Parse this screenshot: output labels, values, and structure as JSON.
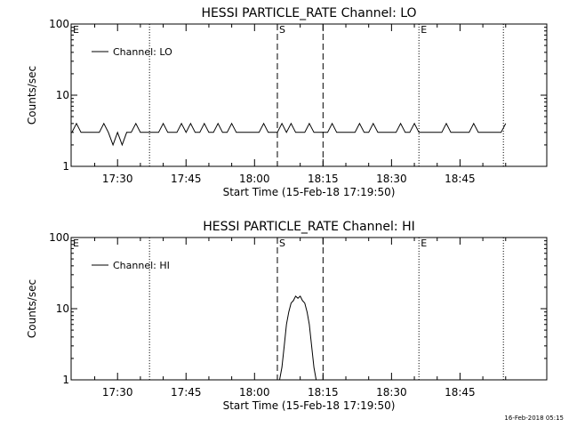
{
  "footer": "16-Feb-2018 05:15",
  "chart_data": [
    {
      "type": "line",
      "title": "HESSI PARTICLE_RATE Channel: LO",
      "xlabel": "Start Time (15-Feb-18 17:19:50)",
      "ylabel": "Counts/sec",
      "yscale": "log",
      "ylim": [
        1,
        100
      ],
      "yticks": [
        1,
        10,
        100
      ],
      "xlim": [
        "17:19:50",
        "19:04:00"
      ],
      "xticks": [
        "17:30",
        "17:45",
        "18:00",
        "18:15",
        "18:30",
        "18:45"
      ],
      "legend": {
        "placement": "top-left"
      },
      "markers": [
        {
          "label": "E",
          "time": "17:19:50",
          "style": "dotted"
        },
        {
          "label": "",
          "time": "17:37:00",
          "style": "dotted"
        },
        {
          "label": "S",
          "time": "18:05:00",
          "style": "dashed"
        },
        {
          "label": "",
          "time": "18:15:00",
          "style": "dashed"
        },
        {
          "label": "E",
          "time": "18:36:00",
          "style": "dotted"
        },
        {
          "label": "",
          "time": "18:54:30",
          "style": "dotted"
        }
      ],
      "series": [
        {
          "name": "Channel: LO",
          "x": [
            "17:20",
            "17:21",
            "17:22",
            "17:23",
            "17:24",
            "17:25",
            "17:26",
            "17:27",
            "17:28",
            "17:29",
            "17:30",
            "17:31",
            "17:32",
            "17:33",
            "17:34",
            "17:35",
            "17:36",
            "17:37",
            "17:38",
            "17:39",
            "17:40",
            "17:41",
            "17:42",
            "17:43",
            "17:44",
            "17:45",
            "17:46",
            "17:47",
            "17:48",
            "17:49",
            "17:50",
            "17:51",
            "17:52",
            "17:53",
            "17:54",
            "17:55",
            "17:56",
            "17:57",
            "17:58",
            "17:59",
            "18:00",
            "18:01",
            "18:02",
            "18:03",
            "18:04",
            "18:05",
            "18:06",
            "18:07",
            "18:08",
            "18:09",
            "18:10",
            "18:11",
            "18:12",
            "18:13",
            "18:14",
            "18:15",
            "18:16",
            "18:17",
            "18:18",
            "18:19",
            "18:20",
            "18:21",
            "18:22",
            "18:23",
            "18:24",
            "18:25",
            "18:26",
            "18:27",
            "18:28",
            "18:29",
            "18:30",
            "18:31",
            "18:32",
            "18:33",
            "18:34",
            "18:35",
            "18:36",
            "18:37",
            "18:38",
            "18:39",
            "18:40",
            "18:41",
            "18:42",
            "18:43",
            "18:44",
            "18:45",
            "18:46",
            "18:47",
            "18:48",
            "18:49",
            "18:50",
            "18:51",
            "18:52",
            "18:53",
            "18:54",
            "18:55"
          ],
          "values": [
            3,
            4,
            3,
            3,
            3,
            3,
            3,
            4,
            3,
            2,
            3,
            2,
            3,
            3,
            4,
            3,
            3,
            3,
            3,
            3,
            4,
            3,
            3,
            3,
            4,
            3,
            4,
            3,
            3,
            4,
            3,
            3,
            4,
            3,
            3,
            4,
            3,
            3,
            3,
            3,
            3,
            3,
            4,
            3,
            3,
            3,
            4,
            3,
            4,
            3,
            3,
            3,
            4,
            3,
            3,
            3,
            3,
            4,
            3,
            3,
            3,
            3,
            3,
            4,
            3,
            3,
            4,
            3,
            3,
            3,
            3,
            3,
            4,
            3,
            3,
            4,
            3,
            3,
            3,
            3,
            3,
            3,
            4,
            3,
            3,
            3,
            3,
            3,
            4,
            3,
            3,
            3,
            3,
            3,
            3,
            4
          ]
        }
      ]
    },
    {
      "type": "line",
      "title": "HESSI PARTICLE_RATE Channel: HI",
      "xlabel": "Start Time (15-Feb-18 17:19:50)",
      "ylabel": "Counts/sec",
      "yscale": "log",
      "ylim": [
        1,
        100
      ],
      "yticks": [
        1,
        10,
        100
      ],
      "xlim": [
        "17:19:50",
        "19:04:00"
      ],
      "xticks": [
        "17:30",
        "17:45",
        "18:00",
        "18:15",
        "18:30",
        "18:45"
      ],
      "legend": {
        "placement": "top-left"
      },
      "markers": [
        {
          "label": "E",
          "time": "17:19:50",
          "style": "dotted"
        },
        {
          "label": "",
          "time": "17:37:00",
          "style": "dotted"
        },
        {
          "label": "S",
          "time": "18:05:00",
          "style": "dashed"
        },
        {
          "label": "",
          "time": "18:15:00",
          "style": "dashed"
        },
        {
          "label": "E",
          "time": "18:36:00",
          "style": "dotted"
        },
        {
          "label": "",
          "time": "18:54:30",
          "style": "dotted"
        }
      ],
      "series": [
        {
          "name": "Channel: HI",
          "x": [
            "18:05:30",
            "18:06:00",
            "18:06:30",
            "18:07:00",
            "18:07:30",
            "18:08:00",
            "18:08:30",
            "18:09:00",
            "18:09:30",
            "18:10:00",
            "18:10:30",
            "18:11:00",
            "18:11:30",
            "18:12:00",
            "18:12:30",
            "18:13:00",
            "18:13:30"
          ],
          "values": [
            1,
            1.5,
            3,
            6,
            9,
            12,
            13,
            15,
            14,
            15,
            13,
            12,
            9,
            6,
            3,
            1.5,
            1
          ]
        }
      ]
    }
  ]
}
